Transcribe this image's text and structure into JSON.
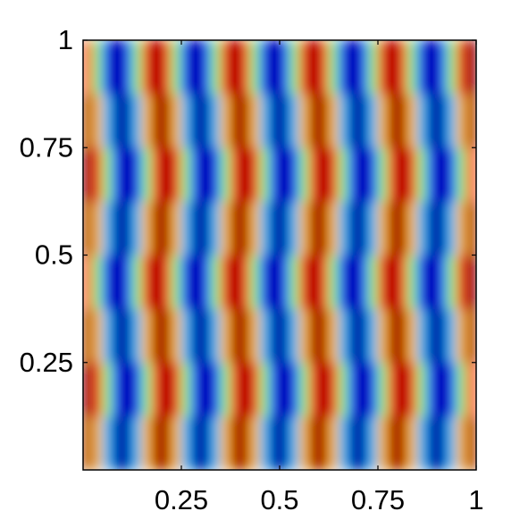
{
  "chart_data": {
    "type": "heatmap",
    "colormap": "jet",
    "x": [
      0.0125,
      0.0375,
      0.0625,
      0.0875,
      0.1125,
      0.1375,
      0.1625,
      0.1875,
      0.2125,
      0.2375,
      0.2625,
      0.2875,
      0.3125,
      0.3375,
      0.3625,
      0.3875,
      0.4125,
      0.4375,
      0.4625,
      0.4875,
      0.5125,
      0.5375,
      0.5625,
      0.5875,
      0.6125,
      0.6375,
      0.6625,
      0.6875,
      0.7125,
      0.7375,
      0.7625,
      0.7875,
      0.8125,
      0.8375,
      0.8625,
      0.8875,
      0.9125,
      0.9375,
      0.9625,
      0.9875
    ],
    "y": [
      0.0625,
      0.1875,
      0.3125,
      0.4375,
      0.5625,
      0.6875,
      0.8125,
      0.9375
    ],
    "z": [
      [
        0.92,
        0.38,
        -0.38,
        -0.92,
        -0.92,
        -0.38,
        0.38,
        0.92,
        0.92,
        0.38,
        -0.38,
        -0.92,
        -0.92,
        -0.38,
        0.38,
        0.92,
        0.92,
        0.38,
        -0.38,
        -0.92,
        -0.92,
        -0.38,
        0.38,
        0.92,
        0.92,
        0.38,
        -0.38,
        -0.92,
        -0.92,
        -0.38,
        0.38,
        0.92,
        0.92,
        0.38,
        -0.38,
        -0.92,
        -0.92,
        -0.38,
        0.38,
        0.92
      ],
      [
        1,
        0.71,
        0,
        -0.71,
        -1,
        -0.71,
        0,
        0.71,
        1,
        0.71,
        0,
        -0.71,
        -1,
        -0.71,
        0,
        0.71,
        1,
        0.71,
        0,
        -0.71,
        -1,
        -0.71,
        0,
        0.71,
        1,
        0.71,
        0,
        -0.71,
        -1,
        -0.71,
        0,
        0.71,
        1,
        0.71,
        0,
        -0.71,
        -1,
        -0.71,
        0,
        0.71
      ],
      [
        0.92,
        0.38,
        -0.38,
        -0.92,
        -0.92,
        -0.38,
        0.38,
        0.92,
        0.92,
        0.38,
        -0.38,
        -0.92,
        -0.92,
        -0.38,
        0.38,
        0.92,
        0.92,
        0.38,
        -0.38,
        -0.92,
        -0.92,
        -0.38,
        0.38,
        0.92,
        0.92,
        0.38,
        -0.38,
        -0.92,
        -0.92,
        -0.38,
        0.38,
        0.92,
        0.92,
        0.38,
        -0.38,
        -0.92,
        -0.92,
        -0.38,
        0.38,
        0.92
      ],
      [
        0.71,
        0,
        -0.71,
        -1,
        -0.71,
        0,
        0.71,
        1,
        0.71,
        0,
        -0.71,
        -1,
        -0.71,
        0,
        0.71,
        1,
        0.71,
        0,
        -0.71,
        -1,
        -0.71,
        0,
        0.71,
        1,
        0.71,
        0,
        -0.71,
        -1,
        -0.71,
        0,
        0.71,
        1,
        0.71,
        0,
        -0.71,
        -1,
        -0.71,
        0,
        0.71,
        1
      ],
      [
        0.92,
        0.38,
        -0.38,
        -0.92,
        -0.92,
        -0.38,
        0.38,
        0.92,
        0.92,
        0.38,
        -0.38,
        -0.92,
        -0.92,
        -0.38,
        0.38,
        0.92,
        0.92,
        0.38,
        -0.38,
        -0.92,
        -0.92,
        -0.38,
        0.38,
        0.92,
        0.92,
        0.38,
        -0.38,
        -0.92,
        -0.92,
        -0.38,
        0.38,
        0.92,
        0.92,
        0.38,
        -0.38,
        -0.92,
        -0.92,
        -0.38,
        0.38,
        0.92
      ],
      [
        1,
        0.71,
        0,
        -0.71,
        -1,
        -0.71,
        0,
        0.71,
        1,
        0.71,
        0,
        -0.71,
        -1,
        -0.71,
        0,
        0.71,
        1,
        0.71,
        0,
        -0.71,
        -1,
        -0.71,
        0,
        0.71,
        1,
        0.71,
        0,
        -0.71,
        -1,
        -0.71,
        0,
        0.71,
        1,
        0.71,
        0,
        -0.71,
        -1,
        -0.71,
        0,
        0.71
      ],
      [
        0.92,
        0.38,
        -0.38,
        -0.92,
        -0.92,
        -0.38,
        0.38,
        0.92,
        0.92,
        0.38,
        -0.38,
        -0.92,
        -0.92,
        -0.38,
        0.38,
        0.92,
        0.92,
        0.38,
        -0.38,
        -0.92,
        -0.92,
        -0.38,
        0.38,
        0.92,
        0.92,
        0.38,
        -0.38,
        -0.92,
        -0.92,
        -0.38,
        0.38,
        0.92,
        0.92,
        0.38,
        -0.38,
        -0.92,
        -0.92,
        -0.38,
        0.38,
        0.92
      ],
      [
        0.71,
        0,
        -0.71,
        -1,
        -0.71,
        0,
        0.71,
        1,
        0.71,
        0,
        -0.71,
        -1,
        -0.71,
        0,
        0.71,
        1,
        0.71,
        0,
        -0.71,
        -1,
        -0.71,
        0,
        0.71,
        1,
        0.71,
        0,
        -0.71,
        -1,
        -0.71,
        0,
        0.71,
        1,
        0.71,
        0,
        -0.71,
        -1,
        -0.71,
        0,
        0.71,
        1
      ]
    ],
    "xlim": [
      0,
      1
    ],
    "ylim": [
      0,
      1
    ],
    "xticks": [
      0.25,
      0.5,
      0.75,
      1
    ],
    "yticks": [
      0.25,
      0.5,
      0.75,
      1
    ]
  }
}
